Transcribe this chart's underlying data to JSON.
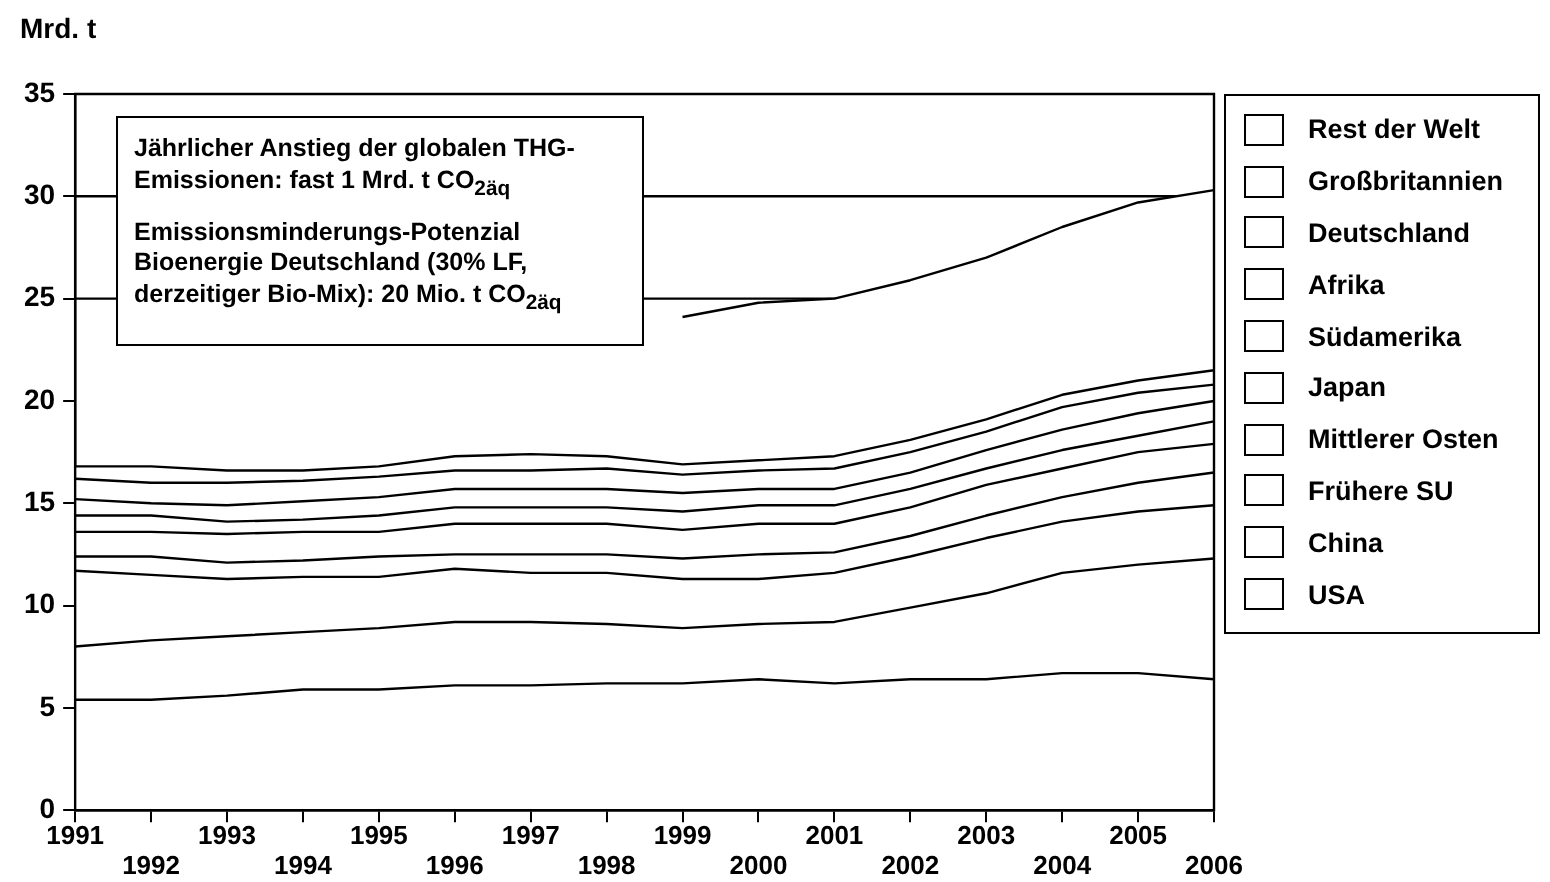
{
  "chart_data": {
    "type": "area",
    "stacked": true,
    "ylabel": "Mrd. t",
    "categories": [
      "1991",
      "1992",
      "1993",
      "1994",
      "1995",
      "1996",
      "1997",
      "1998",
      "1999",
      "2000",
      "2001",
      "2002",
      "2003",
      "2004",
      "2005",
      "2006"
    ],
    "series": [
      {
        "name": "USA",
        "color": "#ffffff",
        "values": [
          5.4,
          5.4,
          5.6,
          5.9,
          5.9,
          6.1,
          6.1,
          6.2,
          6.2,
          6.4,
          6.2,
          6.4,
          6.4,
          6.7,
          6.7,
          6.4
        ]
      },
      {
        "name": "China",
        "color": "#ffffff",
        "values": [
          2.6,
          2.9,
          2.9,
          2.8,
          3.0,
          3.1,
          3.1,
          2.9,
          2.7,
          2.7,
          3.0,
          3.5,
          4.2,
          4.9,
          5.3,
          5.9
        ]
      },
      {
        "name": "Frühere SU",
        "color": "#ffffff",
        "values": [
          3.7,
          3.2,
          2.8,
          2.7,
          2.5,
          2.6,
          2.4,
          2.5,
          2.4,
          2.2,
          2.4,
          2.5,
          2.7,
          2.5,
          2.6,
          2.6
        ]
      },
      {
        "name": "Mittlerer Osten",
        "color": "#ffffff",
        "values": [
          0.7,
          0.9,
          0.8,
          0.8,
          1.0,
          0.7,
          0.9,
          0.9,
          1.0,
          1.2,
          1.0,
          1.0,
          1.1,
          1.2,
          1.4,
          1.6
        ]
      },
      {
        "name": "Japan",
        "color": "#ffffff",
        "values": [
          1.2,
          1.2,
          1.4,
          1.4,
          1.2,
          1.5,
          1.5,
          1.5,
          1.4,
          1.5,
          1.4,
          1.4,
          1.5,
          1.4,
          1.5,
          1.4
        ]
      },
      {
        "name": "Südamerika",
        "color": "#ffffff",
        "values": [
          0.8,
          0.8,
          0.6,
          0.6,
          0.8,
          0.8,
          0.8,
          0.8,
          0.9,
          0.9,
          0.9,
          0.9,
          0.8,
          0.9,
          0.8,
          1.1
        ]
      },
      {
        "name": "Afrika",
        "color": "#ffffff",
        "values": [
          0.8,
          0.6,
          0.8,
          0.9,
          0.9,
          0.9,
          0.9,
          0.9,
          0.9,
          0.8,
          0.8,
          0.8,
          0.9,
          1.0,
          1.1,
          1.0
        ]
      },
      {
        "name": "Deutschland",
        "color": "#ffffff",
        "values": [
          1.0,
          1.0,
          1.1,
          1.0,
          1.0,
          0.9,
          0.9,
          1.0,
          0.9,
          0.9,
          1.0,
          1.0,
          0.9,
          1.1,
          1.0,
          0.8
        ]
      },
      {
        "name": "Großbritannien",
        "color": "#ffffff",
        "values": [
          0.6,
          0.8,
          0.6,
          0.5,
          0.5,
          0.7,
          0.8,
          0.6,
          0.5,
          0.5,
          0.6,
          0.6,
          0.6,
          0.6,
          0.6,
          0.7
        ]
      },
      {
        "name": "Rest der Welt",
        "color": "#ffffff",
        "values": [
          null,
          null,
          null,
          null,
          null,
          null,
          null,
          null,
          7.2,
          7.7,
          7.7,
          7.8,
          7.9,
          8.2,
          8.7,
          8.8
        ]
      }
    ],
    "ylim": [
      0,
      35
    ],
    "yticks": [
      0,
      5,
      10,
      15,
      20,
      25,
      30,
      35
    ],
    "ref_lines": [
      {
        "axis": "y",
        "value": 30,
        "color": "#000000"
      },
      {
        "axis": "y",
        "value": 25,
        "color": "#000000"
      }
    ],
    "annotations": [
      "Jährlicher Anstieg der globalen THG-Emissionen: fast 1 Mrd. t CO$_{2äq}$",
      "Emissionsminderungs-Potenzial Bioenergie Deutschland (30% LF, derzeitiger Bio-Mix): 20 Mio. t CO$_{2äq}$"
    ],
    "grid": false,
    "legend": "right",
    "marker": "none",
    "line_style": "solid"
  }
}
